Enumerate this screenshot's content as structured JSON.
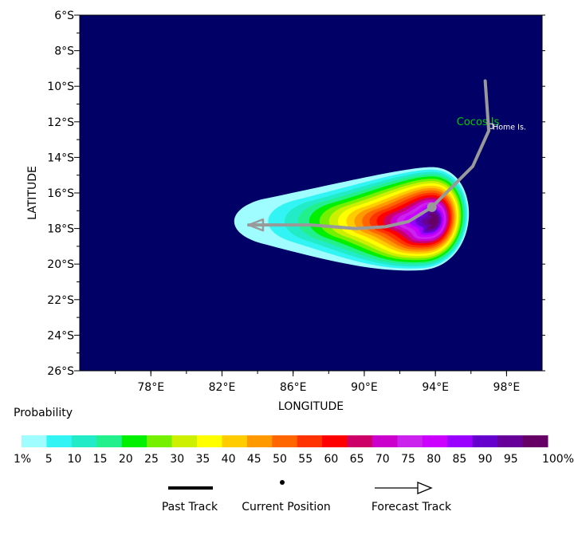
{
  "map": {
    "xlabel": "LONGITUDE",
    "ylabel": "LATITUDE",
    "lat_ticks": [
      {
        "value": -6,
        "label": "6°S"
      },
      {
        "value": -8,
        "label": "8°S"
      },
      {
        "value": -10,
        "label": "10°S"
      },
      {
        "value": -12,
        "label": "12°S"
      },
      {
        "value": -14,
        "label": "14°S"
      },
      {
        "value": -16,
        "label": "16°S"
      },
      {
        "value": -18,
        "label": "18°S"
      },
      {
        "value": -20,
        "label": "20°S"
      },
      {
        "value": -22,
        "label": "22°S"
      },
      {
        "value": -24,
        "label": "24°S"
      },
      {
        "value": -26,
        "label": "26°S"
      }
    ],
    "lon_ticks": [
      {
        "value": 78,
        "label": "78°E"
      },
      {
        "value": 82,
        "label": "82°E"
      },
      {
        "value": 86,
        "label": "86°E"
      },
      {
        "value": 90,
        "label": "90°E"
      },
      {
        "value": 94,
        "label": "94°E"
      },
      {
        "value": 98,
        "label": "98°E"
      }
    ],
    "lon_range": [
      74,
      100
    ],
    "lat_range": [
      -26,
      -6
    ],
    "place_labels": [
      {
        "name": "Cocos Is",
        "lon": 97.3,
        "lat": -12.1,
        "color": "#00cc00"
      },
      {
        "name": "Home Is.",
        "lon": 97.0,
        "lat": -12.2,
        "color": "#ffffff"
      }
    ],
    "track_color": "#999999",
    "background_color": "#000066",
    "track": [
      {
        "lon": 96.8,
        "lat": -9.7
      },
      {
        "lon": 97.0,
        "lat": -12.5
      },
      {
        "lon": 96.1,
        "lat": -14.5
      },
      {
        "lon": 93.8,
        "lat": -16.8
      },
      {
        "lon": 92.5,
        "lat": -17.6
      },
      {
        "lon": 91.2,
        "lat": -17.9
      },
      {
        "lon": 89.5,
        "lat": -18.0
      },
      {
        "lon": 87.0,
        "lat": -17.8
      },
      {
        "lon": 83.5,
        "lat": -17.8
      }
    ],
    "current_position": {
      "lon": 93.8,
      "lat": -16.8
    },
    "swath_core": {
      "lon": 93.8,
      "lat": -17.6
    },
    "swath_tail_lon": 84.2,
    "swath_max_probability": 100
  },
  "colorbar": {
    "title": "Probability",
    "labels": [
      "1%",
      "5",
      "10",
      "15",
      "20",
      "25",
      "30",
      "35",
      "40",
      "45",
      "50",
      "55",
      "60",
      "65",
      "70",
      "75",
      "80",
      "85",
      "90",
      "95",
      "100%"
    ],
    "colors": [
      "#9ffcff",
      "#33f4f4",
      "#22ecc8",
      "#22f08c",
      "#00f000",
      "#74f000",
      "#ccf000",
      "#ffff00",
      "#ffcc00",
      "#ff9900",
      "#ff6600",
      "#ff3300",
      "#ff0000",
      "#cc0066",
      "#cc00cc",
      "#cc22ee",
      "#cc00ff",
      "#9900ff",
      "#6600cc",
      "#660099",
      "#660066"
    ]
  },
  "legend": {
    "past_track": "Past Track",
    "current_position": "Current Position",
    "forecast_track": "Forecast Track"
  }
}
